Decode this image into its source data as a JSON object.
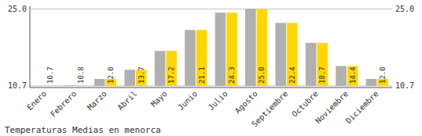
{
  "chart_data": {
    "type": "bar",
    "title": "Temperaturas Medias en menorca",
    "categories": [
      "Enero",
      "Febrero",
      "Marzo",
      "Abril",
      "Mayo",
      "Junio",
      "Julio",
      "Agosto",
      "Septiembre",
      "Octubre",
      "Noviembre",
      "Diciembre"
    ],
    "series": [
      {
        "color": "#B0B0B0",
        "values": [
          10.7,
          10.8,
          12.0,
          13.7,
          17.2,
          21.1,
          24.3,
          25.0,
          22.4,
          18.7,
          14.4,
          12.0
        ]
      },
      {
        "color": "#FFD700",
        "values": [
          10.7,
          10.8,
          12.0,
          13.7,
          17.2,
          21.1,
          24.3,
          25.0,
          22.4,
          18.7,
          14.4,
          12.0
        ],
        "data_labels": true,
        "value_labels": [
          "10.7",
          "10.8",
          "12.0",
          "13.7",
          "17.2",
          "21.1",
          "24.3",
          "25.0",
          "22.4",
          "18.7",
          "14.4",
          "12.0"
        ]
      }
    ],
    "ylim": [
      10.4,
      25.5
    ],
    "yticks": [
      10.7,
      {
        "value": 25.0,
        "label": "25.0"
      }
    ],
    "grid": true
  }
}
